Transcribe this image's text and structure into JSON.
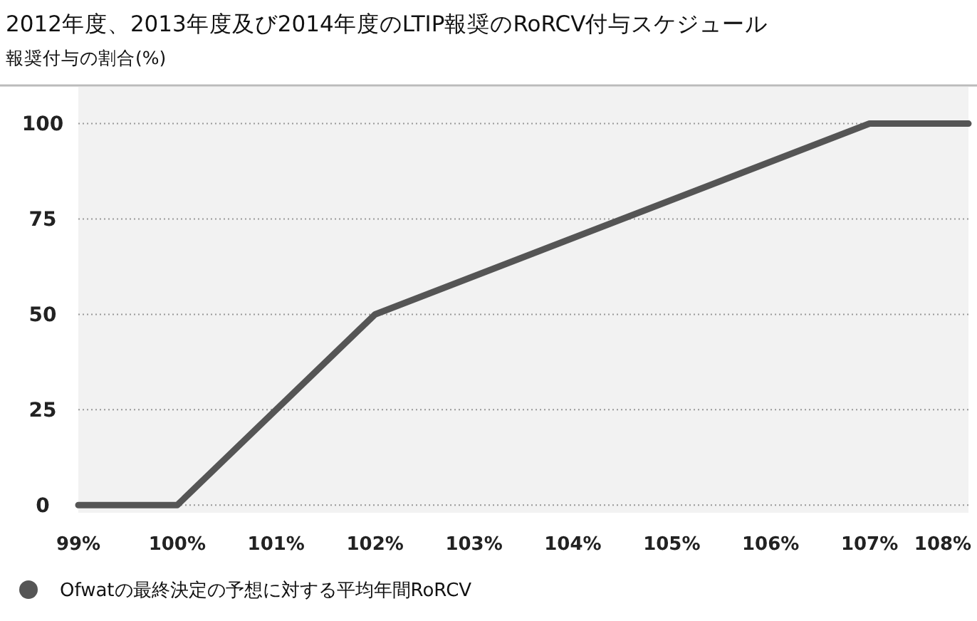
{
  "chart_data": {
    "type": "line",
    "title": "2012年度、2013年度及び2014年度のLTIP報奨のRoRCV付与スケジュール",
    "subtitle": "報奨付与の割合(%)",
    "x": [
      99,
      100,
      102,
      107,
      108
    ],
    "series": [
      {
        "name": "Ofwatの最終決定の予想に対する平均年間RoRCV",
        "color": "#555555",
        "values": [
          0,
          0,
          50,
          100,
          100
        ]
      }
    ],
    "xlim": [
      99,
      108
    ],
    "xticks": [
      {
        "value": 99,
        "label": "99%"
      },
      {
        "value": 100,
        "label": "100%"
      },
      {
        "value": 101,
        "label": "101%"
      },
      {
        "value": 102,
        "label": "102%"
      },
      {
        "value": 103,
        "label": "103%"
      },
      {
        "value": 104,
        "label": "104%"
      },
      {
        "value": 105,
        "label": "105%"
      },
      {
        "value": 106,
        "label": "106%"
      },
      {
        "value": 107,
        "label": "107%"
      },
      {
        "value": 108,
        "label": "108%"
      }
    ],
    "ylim": [
      -2,
      110
    ],
    "yticks": [
      0,
      25,
      50,
      75,
      100
    ],
    "grid": "y",
    "legend": "bottom",
    "marker": "none",
    "line_style": "solid"
  }
}
